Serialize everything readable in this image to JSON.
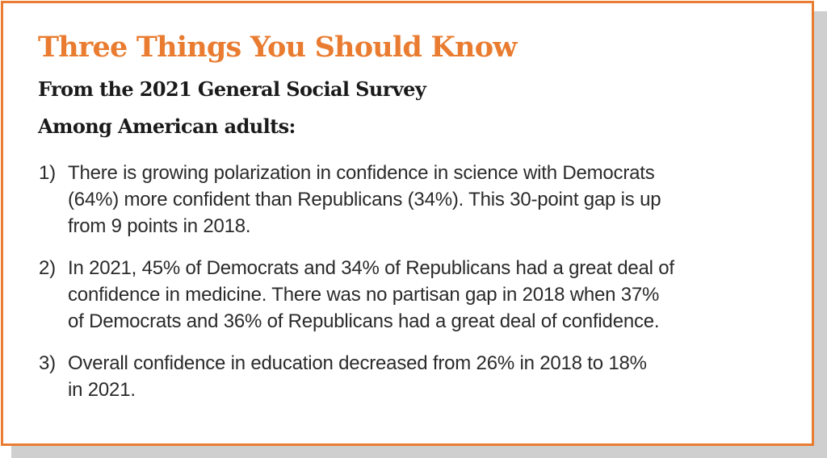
{
  "title": "Three Things You Should Know",
  "subtitle_1": "From the 2021 General Social Survey",
  "subtitle_2": "Among American adults:",
  "items": [
    {
      "number": "1)",
      "lines": [
        "There is growing polarization in confidence in science with Democrats",
        "(64%) more confident than Republicans (34%). This 30-point gap is up",
        "from 9 points in 2018."
      ]
    },
    {
      "number": "2)",
      "lines": [
        "In 2021, 45% of Democrats and 34% of Republicans had a great deal of",
        "confidence in medicine. There was no partisan gap in 2018 when 37%",
        "of Democrats and 36% of Republicans had a great deal of confidence."
      ]
    },
    {
      "number": "3)",
      "lines": [
        "Overall confidence in education decreased from 26% in 2018 to 18%",
        "in 2021."
      ]
    }
  ],
  "colors": {
    "accent": "#e97c30",
    "heading": "#1a1a1a",
    "body": "#2a2a2a",
    "shadow": "#cfcfcf"
  }
}
